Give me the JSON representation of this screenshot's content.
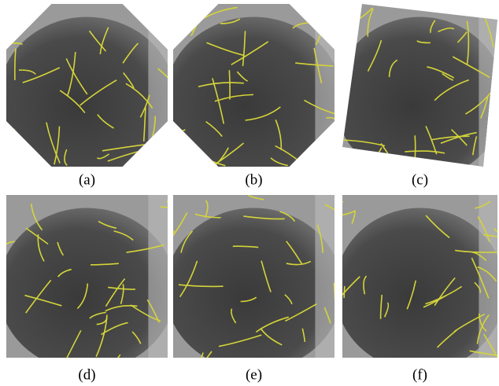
{
  "panels": [
    {
      "caption": "(a)"
    },
    {
      "caption": "(b)"
    },
    {
      "caption": "(c)"
    },
    {
      "caption": "(d)"
    },
    {
      "caption": "(e)"
    },
    {
      "caption": "(f)"
    }
  ]
}
